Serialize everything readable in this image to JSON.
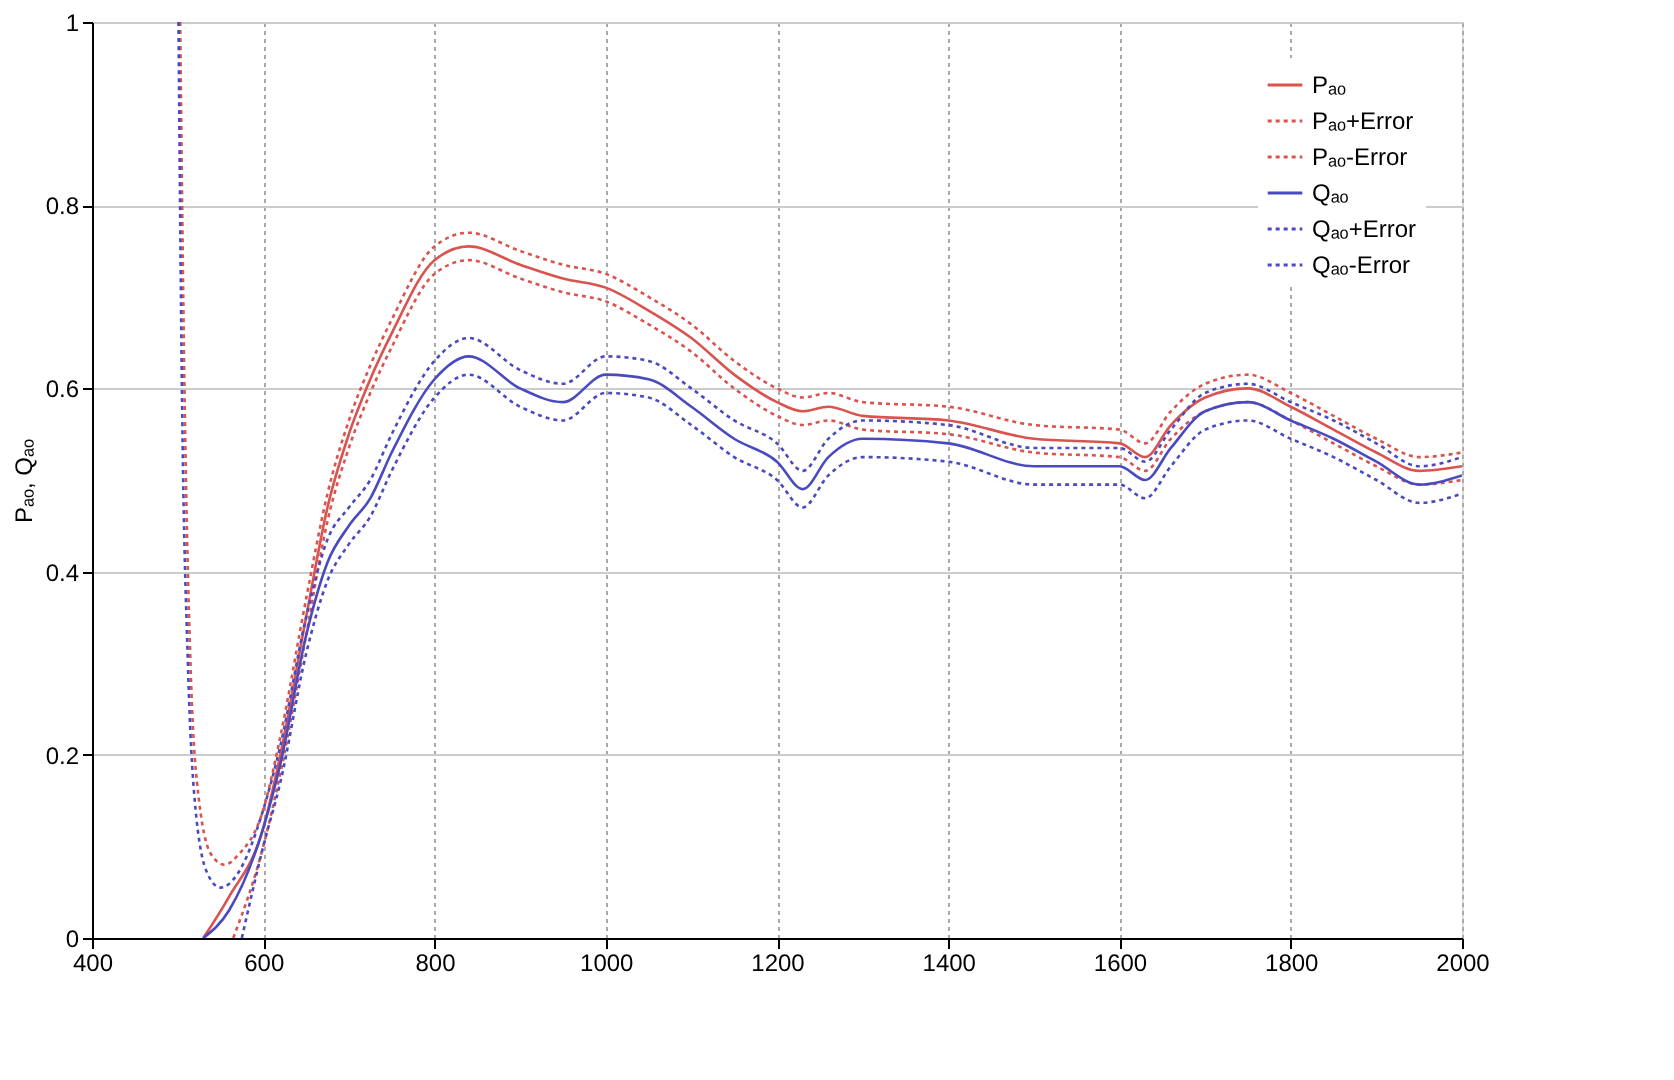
{
  "chart_data": {
    "type": "line",
    "ylabel": "Pₐₒ, Qₐₒ",
    "xlim": [
      400,
      2000
    ],
    "xticks": [
      400,
      600,
      800,
      1000,
      1200,
      1400,
      1600,
      1800,
      2000
    ],
    "ylim": [
      0,
      1
    ],
    "yticks": [
      0,
      0.2,
      0.4,
      0.6,
      0.8,
      1
    ],
    "grid": true,
    "legend": "top right",
    "series": [
      {
        "name": "Pₐₒ",
        "color": "#d9534f",
        "line_style": "solid",
        "x": [
          530,
          560,
          600,
          620,
          650,
          675,
          700,
          725,
          750,
          800,
          840,
          900,
          950,
          1000,
          1050,
          1100,
          1150,
          1200,
          1230,
          1260,
          1300,
          1400,
          1500,
          1600,
          1630,
          1660,
          1700,
          1750,
          1800,
          1850,
          1900,
          1950,
          2000
        ],
        "values": [
          0,
          0.045,
          0.12,
          0.2,
          0.35,
          0.47,
          0.55,
          0.61,
          0.66,
          0.74,
          0.755,
          0.735,
          0.72,
          0.71,
          0.685,
          0.655,
          0.615,
          0.585,
          0.575,
          0.58,
          0.57,
          0.565,
          0.545,
          0.54,
          0.525,
          0.56,
          0.59,
          0.6,
          0.58,
          0.555,
          0.53,
          0.51,
          0.515
        ]
      },
      {
        "name": "Pₐₒ+Error",
        "color": "#d9534f",
        "line_style": "dotted",
        "x": [
          503,
          508,
          515,
          525,
          540,
          555,
          570,
          600,
          620,
          650,
          675,
          700,
          725,
          750,
          800,
          840,
          900,
          950,
          1000,
          1050,
          1100,
          1150,
          1200,
          1230,
          1260,
          1300,
          1400,
          1500,
          1600,
          1630,
          1660,
          1700,
          1750,
          1800,
          1850,
          1900,
          1950,
          2000
        ],
        "values": [
          1,
          0.6,
          0.3,
          0.15,
          0.09,
          0.08,
          0.09,
          0.14,
          0.22,
          0.37,
          0.485,
          0.565,
          0.625,
          0.675,
          0.755,
          0.77,
          0.75,
          0.735,
          0.725,
          0.7,
          0.67,
          0.63,
          0.6,
          0.59,
          0.595,
          0.585,
          0.58,
          0.56,
          0.555,
          0.54,
          0.575,
          0.605,
          0.615,
          0.595,
          0.57,
          0.545,
          0.525,
          0.53
        ]
      },
      {
        "name": "Pₐₒ-Error",
        "color": "#d9534f",
        "line_style": "dotted",
        "x": [
          565,
          600,
          620,
          650,
          675,
          700,
          725,
          750,
          800,
          840,
          900,
          950,
          1000,
          1050,
          1100,
          1150,
          1200,
          1230,
          1260,
          1300,
          1400,
          1500,
          1600,
          1630,
          1660,
          1700,
          1750,
          1800,
          1850,
          1900,
          1950,
          2000
        ],
        "values": [
          0,
          0.1,
          0.18,
          0.33,
          0.455,
          0.535,
          0.595,
          0.645,
          0.725,
          0.74,
          0.72,
          0.705,
          0.695,
          0.67,
          0.64,
          0.6,
          0.57,
          0.56,
          0.565,
          0.555,
          0.55,
          0.53,
          0.525,
          0.51,
          0.545,
          0.575,
          0.585,
          0.565,
          0.54,
          0.515,
          0.495,
          0.5
        ]
      },
      {
        "name": "Qₐₒ",
        "color": "#4a4ac0",
        "line_style": "solid",
        "x": [
          530,
          560,
          600,
          620,
          650,
          675,
          700,
          725,
          750,
          800,
          840,
          900,
          950,
          1000,
          1050,
          1100,
          1150,
          1200,
          1230,
          1260,
          1300,
          1400,
          1500,
          1600,
          1630,
          1660,
          1700,
          1750,
          1800,
          1850,
          1900,
          1950,
          2000
        ],
        "values": [
          0,
          0.03,
          0.12,
          0.19,
          0.33,
          0.41,
          0.45,
          0.48,
          0.53,
          0.61,
          0.635,
          0.6,
          0.585,
          0.615,
          0.61,
          0.58,
          0.545,
          0.52,
          0.49,
          0.525,
          0.545,
          0.54,
          0.515,
          0.515,
          0.5,
          0.535,
          0.575,
          0.585,
          0.565,
          0.545,
          0.52,
          0.495,
          0.505
        ]
      },
      {
        "name": "Qₐₒ+Error",
        "color": "#4a4ac0",
        "line_style": "dotted",
        "x": [
          501,
          505,
          512,
          520,
          535,
          550,
          570,
          600,
          620,
          650,
          675,
          700,
          725,
          750,
          800,
          840,
          900,
          950,
          1000,
          1050,
          1100,
          1150,
          1200,
          1230,
          1260,
          1300,
          1400,
          1500,
          1600,
          1630,
          1660,
          1700,
          1750,
          1800,
          1850,
          1900,
          1950,
          2000
        ],
        "values": [
          1,
          0.6,
          0.3,
          0.15,
          0.07,
          0.055,
          0.07,
          0.14,
          0.21,
          0.35,
          0.435,
          0.47,
          0.5,
          0.55,
          0.63,
          0.655,
          0.62,
          0.605,
          0.635,
          0.63,
          0.6,
          0.565,
          0.54,
          0.51,
          0.545,
          0.565,
          0.56,
          0.535,
          0.535,
          0.52,
          0.555,
          0.595,
          0.605,
          0.585,
          0.565,
          0.54,
          0.515,
          0.525
        ]
      },
      {
        "name": "Qₐₒ-Error",
        "color": "#4a4ac0",
        "line_style": "dotted",
        "x": [
          575,
          600,
          620,
          650,
          675,
          700,
          725,
          750,
          800,
          840,
          900,
          950,
          1000,
          1050,
          1100,
          1150,
          1200,
          1230,
          1260,
          1300,
          1400,
          1500,
          1600,
          1630,
          1660,
          1700,
          1750,
          1800,
          1850,
          1900,
          1950,
          2000
        ],
        "values": [
          0,
          0.1,
          0.17,
          0.31,
          0.39,
          0.43,
          0.46,
          0.51,
          0.59,
          0.615,
          0.58,
          0.565,
          0.595,
          0.59,
          0.56,
          0.525,
          0.5,
          0.47,
          0.505,
          0.525,
          0.52,
          0.495,
          0.495,
          0.48,
          0.515,
          0.555,
          0.565,
          0.545,
          0.525,
          0.5,
          0.475,
          0.485
        ]
      }
    ]
  }
}
